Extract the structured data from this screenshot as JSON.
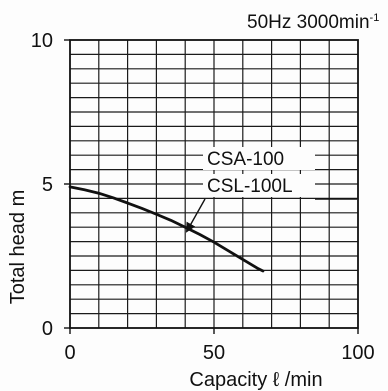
{
  "chart_data": {
    "type": "line",
    "title": "50Hz 3000min",
    "title_superscript": "-1",
    "xlabel": "Capacity  ℓ /min",
    "ylabel": "Total head  m",
    "xlim": [
      0,
      100
    ],
    "ylim": [
      0,
      10
    ],
    "x_ticks": [
      {
        "value": 0,
        "label": "0"
      },
      {
        "value": 50,
        "label": "50"
      },
      {
        "value": 100,
        "label": "100"
      }
    ],
    "y_ticks": [
      {
        "value": 0,
        "label": "0"
      },
      {
        "value": 5,
        "label": "5"
      },
      {
        "value": 10,
        "label": "10"
      }
    ],
    "grid": true,
    "series": [
      {
        "name": "CSA-100",
        "name2": "CSL-100L",
        "x": [
          0,
          5,
          10,
          15,
          20,
          25,
          30,
          35,
          40,
          45,
          50,
          55,
          60,
          65,
          67
        ],
        "y": [
          4.9,
          4.8,
          4.68,
          4.52,
          4.34,
          4.15,
          3.95,
          3.74,
          3.5,
          3.25,
          2.98,
          2.68,
          2.38,
          2.08,
          1.98
        ]
      }
    ],
    "colors": {
      "line": "#111111",
      "grid": "#1b1b1b",
      "frame": "#111111",
      "background": "#fdfdfd"
    }
  }
}
